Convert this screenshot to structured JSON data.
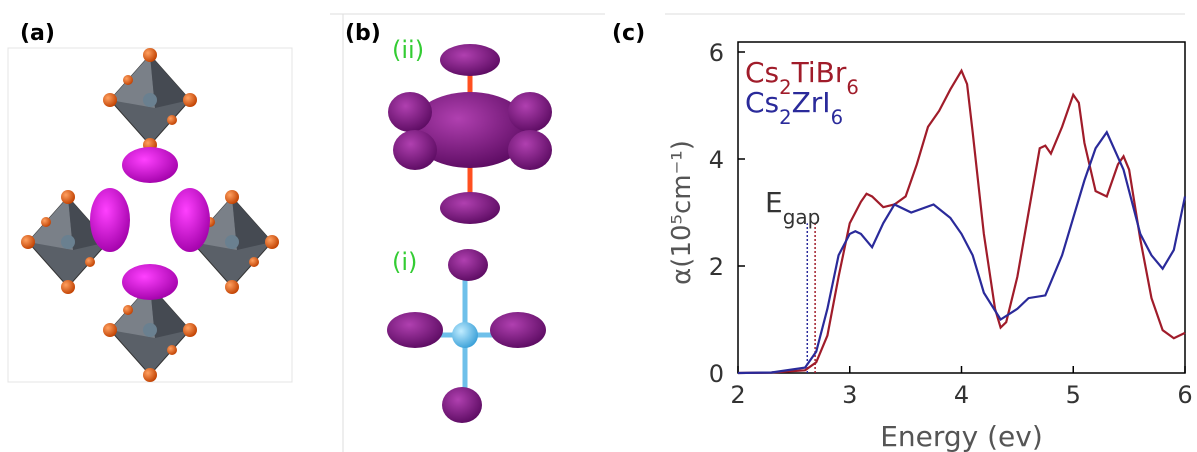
{
  "panels": {
    "a": "(a)",
    "b": "(b)",
    "c": "(c)",
    "b_upper": "(ii)",
    "b_lower": "(i)"
  },
  "chart_data": {
    "type": "line",
    "xlabel": "Energy (ev)",
    "ylabel": "α(10⁵cm⁻¹)",
    "xlim": [
      2,
      6
    ],
    "ylim": [
      0,
      6
    ],
    "xticks": [
      2,
      3,
      4,
      5,
      6
    ],
    "yticks": [
      0,
      2,
      4,
      6
    ],
    "legend": "top-left",
    "grid": false,
    "annotation": {
      "text": "E",
      "subscript": "gap"
    },
    "gap_lines": [
      {
        "x": 2.62,
        "top": 2.8,
        "color": "#2a2a9a"
      },
      {
        "x": 2.69,
        "top": 2.8,
        "color": "#a01c2a"
      }
    ],
    "series": [
      {
        "name": "Cs2TiBr6",
        "color": "#a01c2a",
        "x": [
          2,
          2.3,
          2.6,
          2.7,
          2.8,
          2.9,
          3,
          3.1,
          3.15,
          3.2,
          3.3,
          3.4,
          3.5,
          3.6,
          3.7,
          3.8,
          3.9,
          4,
          4.05,
          4.1,
          4.2,
          4.3,
          4.35,
          4.4,
          4.5,
          4.6,
          4.7,
          4.75,
          4.8,
          4.9,
          5,
          5.05,
          5.1,
          5.2,
          5.3,
          5.4,
          5.45,
          5.5,
          5.6,
          5.7,
          5.8,
          5.9,
          6
        ],
        "values": [
          0,
          0.01,
          0.05,
          0.2,
          0.7,
          1.8,
          2.8,
          3.2,
          3.35,
          3.3,
          3.1,
          3.15,
          3.3,
          3.9,
          4.6,
          4.9,
          5.3,
          5.65,
          5.4,
          4.5,
          2.6,
          1.2,
          0.85,
          0.95,
          1.8,
          3.0,
          4.2,
          4.25,
          4.1,
          4.6,
          5.2,
          5.05,
          4.3,
          3.4,
          3.3,
          3.9,
          4.05,
          3.8,
          2.5,
          1.4,
          0.8,
          0.65,
          0.75
        ]
      },
      {
        "name": "Cs2ZrI6",
        "color": "#2a2a9a",
        "x": [
          2,
          2.3,
          2.6,
          2.7,
          2.8,
          2.9,
          3,
          3.05,
          3.1,
          3.2,
          3.3,
          3.4,
          3.55,
          3.75,
          3.9,
          4,
          4.1,
          4.2,
          4.35,
          4.5,
          4.6,
          4.75,
          4.9,
          5,
          5.1,
          5.2,
          5.3,
          5.45,
          5.6,
          5.7,
          5.8,
          5.9,
          6
        ],
        "values": [
          0,
          0.01,
          0.1,
          0.4,
          1.2,
          2.2,
          2.6,
          2.65,
          2.6,
          2.35,
          2.8,
          3.15,
          3.0,
          3.15,
          2.9,
          2.6,
          2.2,
          1.5,
          1.0,
          1.2,
          1.4,
          1.45,
          2.2,
          2.9,
          3.6,
          4.2,
          4.5,
          3.8,
          2.6,
          2.2,
          1.95,
          2.3,
          3.3
        ]
      }
    ]
  }
}
